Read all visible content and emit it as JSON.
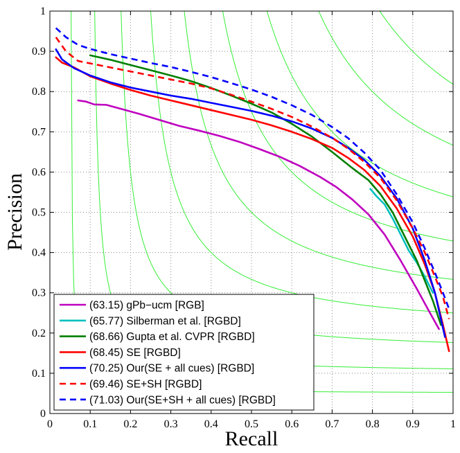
{
  "chart_data": {
    "type": "line",
    "xlabel": "Recall",
    "ylabel": "Precision",
    "xlim": [
      0,
      1
    ],
    "ylim": [
      0,
      1
    ],
    "grid": "dotted",
    "legend_position": "bottom-left",
    "x_ticks": [
      "0",
      "0.1",
      "0.2",
      "0.3",
      "0.4",
      "0.5",
      "0.6",
      "0.7",
      "0.8",
      "0.9",
      "1"
    ],
    "y_ticks": [
      "0",
      "0.1",
      "0.2",
      "0.3",
      "0.4",
      "0.5",
      "0.6",
      "0.7",
      "0.8",
      "0.9",
      "1"
    ],
    "iso_f_color": "#33ee33",
    "iso_f_levels": [
      0.1,
      0.2,
      0.3,
      0.4,
      0.5,
      0.6,
      0.7,
      0.8,
      0.9
    ],
    "series": [
      {
        "name": "(63.15) gPb−ucm [RGB]",
        "color": "#bf00bf",
        "dash": "solid",
        "points": [
          [
            0.07,
            0.778
          ],
          [
            0.09,
            0.775
          ],
          [
            0.11,
            0.768
          ],
          [
            0.14,
            0.767
          ],
          [
            0.18,
            0.756
          ],
          [
            0.22,
            0.745
          ],
          [
            0.27,
            0.73
          ],
          [
            0.32,
            0.715
          ],
          [
            0.37,
            0.703
          ],
          [
            0.42,
            0.69
          ],
          [
            0.47,
            0.675
          ],
          [
            0.52,
            0.657
          ],
          [
            0.57,
            0.638
          ],
          [
            0.62,
            0.615
          ],
          [
            0.67,
            0.588
          ],
          [
            0.71,
            0.563
          ],
          [
            0.75,
            0.532
          ],
          [
            0.79,
            0.495
          ],
          [
            0.83,
            0.445
          ],
          [
            0.87,
            0.38
          ],
          [
            0.91,
            0.31
          ],
          [
            0.94,
            0.255
          ],
          [
            0.965,
            0.21
          ]
        ]
      },
      {
        "name": "(65.77) Silberman et al. [RGBD]",
        "color": "#00bfbf",
        "dash": "solid",
        "points": [
          [
            0.795,
            0.558
          ],
          [
            0.81,
            0.54
          ],
          [
            0.83,
            0.52
          ],
          [
            0.85,
            0.485
          ],
          [
            0.87,
            0.445
          ],
          [
            0.89,
            0.405
          ],
          [
            0.91,
            0.375
          ],
          [
            0.93,
            0.34
          ],
          [
            0.95,
            0.3
          ]
        ]
      },
      {
        "name": "(68.66) Gupta et al. CVPR [RGBD]",
        "color": "#007f00",
        "dash": "solid",
        "points": [
          [
            0.1,
            0.89
          ],
          [
            0.15,
            0.879
          ],
          [
            0.2,
            0.866
          ],
          [
            0.25,
            0.853
          ],
          [
            0.3,
            0.84
          ],
          [
            0.35,
            0.826
          ],
          [
            0.4,
            0.809
          ],
          [
            0.45,
            0.79
          ],
          [
            0.5,
            0.77
          ],
          [
            0.55,
            0.748
          ],
          [
            0.6,
            0.72
          ],
          [
            0.65,
            0.688
          ],
          [
            0.7,
            0.65
          ],
          [
            0.75,
            0.61
          ],
          [
            0.79,
            0.58
          ],
          [
            0.82,
            0.545
          ],
          [
            0.85,
            0.5
          ],
          [
            0.88,
            0.44
          ],
          [
            0.91,
            0.38
          ],
          [
            0.93,
            0.33
          ],
          [
            0.95,
            0.28
          ],
          [
            0.97,
            0.22
          ]
        ]
      },
      {
        "name": "(68.45) SE [RGBD]",
        "color": "#ff0000",
        "dash": "solid",
        "points": [
          [
            0.015,
            0.885
          ],
          [
            0.03,
            0.872
          ],
          [
            0.06,
            0.86
          ],
          [
            0.1,
            0.838
          ],
          [
            0.15,
            0.82
          ],
          [
            0.2,
            0.804
          ],
          [
            0.25,
            0.79
          ],
          [
            0.3,
            0.778
          ],
          [
            0.35,
            0.766
          ],
          [
            0.4,
            0.754
          ],
          [
            0.45,
            0.742
          ],
          [
            0.5,
            0.73
          ],
          [
            0.55,
            0.716
          ],
          [
            0.6,
            0.7
          ],
          [
            0.65,
            0.682
          ],
          [
            0.7,
            0.66
          ],
          [
            0.74,
            0.635
          ],
          [
            0.78,
            0.605
          ],
          [
            0.82,
            0.565
          ],
          [
            0.86,
            0.51
          ],
          [
            0.9,
            0.44
          ],
          [
            0.93,
            0.37
          ],
          [
            0.955,
            0.3
          ],
          [
            0.975,
            0.22
          ],
          [
            0.99,
            0.155
          ]
        ]
      },
      {
        "name": "(70.25) Our(SE + all cues) [RGBD]",
        "color": "#0000ff",
        "dash": "solid",
        "points": [
          [
            0.015,
            0.905
          ],
          [
            0.03,
            0.88
          ],
          [
            0.06,
            0.858
          ],
          [
            0.1,
            0.84
          ],
          [
            0.15,
            0.823
          ],
          [
            0.2,
            0.81
          ],
          [
            0.25,
            0.8
          ],
          [
            0.3,
            0.79
          ],
          [
            0.35,
            0.782
          ],
          [
            0.4,
            0.772
          ],
          [
            0.45,
            0.762
          ],
          [
            0.5,
            0.752
          ],
          [
            0.55,
            0.74
          ],
          [
            0.6,
            0.726
          ],
          [
            0.65,
            0.708
          ],
          [
            0.7,
            0.685
          ],
          [
            0.74,
            0.66
          ],
          [
            0.78,
            0.63
          ],
          [
            0.82,
            0.59
          ],
          [
            0.86,
            0.535
          ],
          [
            0.9,
            0.46
          ],
          [
            0.93,
            0.38
          ],
          [
            0.955,
            0.3
          ],
          [
            0.98,
            0.19
          ]
        ]
      },
      {
        "name": "(69.46) SE+SH [RGBD]",
        "color": "#ff0000",
        "dash": "dashed",
        "points": [
          [
            0.015,
            0.935
          ],
          [
            0.04,
            0.9
          ],
          [
            0.07,
            0.876
          ],
          [
            0.1,
            0.87
          ],
          [
            0.15,
            0.86
          ],
          [
            0.2,
            0.85
          ],
          [
            0.25,
            0.84
          ],
          [
            0.3,
            0.83
          ],
          [
            0.35,
            0.82
          ],
          [
            0.4,
            0.808
          ],
          [
            0.45,
            0.792
          ],
          [
            0.5,
            0.775
          ],
          [
            0.55,
            0.757
          ],
          [
            0.6,
            0.737
          ],
          [
            0.65,
            0.713
          ],
          [
            0.7,
            0.685
          ],
          [
            0.74,
            0.658
          ],
          [
            0.78,
            0.625
          ],
          [
            0.82,
            0.585
          ],
          [
            0.86,
            0.53
          ],
          [
            0.9,
            0.46
          ],
          [
            0.93,
            0.4
          ],
          [
            0.955,
            0.34
          ],
          [
            0.975,
            0.29
          ],
          [
            0.99,
            0.235
          ]
        ]
      },
      {
        "name": "(71.03) Our(SE+SH + all cues) [RGBD]",
        "color": "#0000ff",
        "dash": "dashed",
        "points": [
          [
            0.015,
            0.958
          ],
          [
            0.04,
            0.935
          ],
          [
            0.07,
            0.916
          ],
          [
            0.1,
            0.906
          ],
          [
            0.15,
            0.893
          ],
          [
            0.2,
            0.882
          ],
          [
            0.25,
            0.871
          ],
          [
            0.3,
            0.861
          ],
          [
            0.35,
            0.849
          ],
          [
            0.4,
            0.836
          ],
          [
            0.45,
            0.821
          ],
          [
            0.5,
            0.805
          ],
          [
            0.55,
            0.787
          ],
          [
            0.6,
            0.766
          ],
          [
            0.65,
            0.742
          ],
          [
            0.7,
            0.712
          ],
          [
            0.74,
            0.684
          ],
          [
            0.78,
            0.648
          ],
          [
            0.82,
            0.605
          ],
          [
            0.86,
            0.545
          ],
          [
            0.9,
            0.475
          ],
          [
            0.93,
            0.41
          ],
          [
            0.955,
            0.35
          ],
          [
            0.975,
            0.3
          ],
          [
            0.99,
            0.26
          ]
        ]
      }
    ]
  }
}
